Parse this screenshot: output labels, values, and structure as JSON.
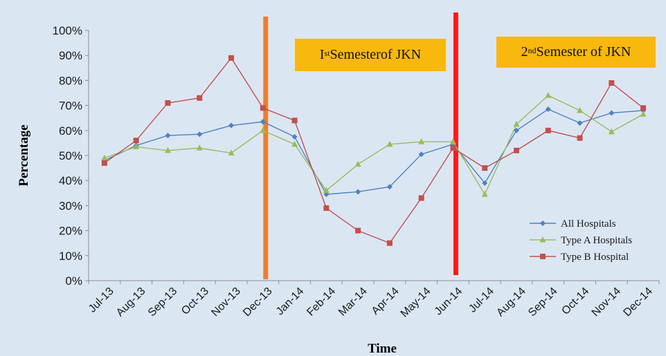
{
  "chart_data": {
    "type": "line",
    "title": "",
    "xlabel": "Time",
    "ylabel": "Percentage",
    "ylim": [
      0,
      100
    ],
    "y_ticks": [
      "0%",
      "10%",
      "20%",
      "30%",
      "40%",
      "50%",
      "60%",
      "70%",
      "80%",
      "90%",
      "100%"
    ],
    "categories": [
      "Jul-13",
      "Aug-13",
      "Sep-13",
      "Oct-13",
      "Nov-13",
      "Dec-13",
      "Jan-14",
      "Feb-14",
      "Mar-14",
      "Apr-14",
      "May-14",
      "Jun-14",
      "Jul-14",
      "Aug-14",
      "Sep-14",
      "Oct-14",
      "Nov-14",
      "Dec-14"
    ],
    "series": [
      {
        "name": "All Hospitals",
        "color": "#4f81bd",
        "marker": "diamond",
        "values": [
          48,
          54,
          58,
          58.5,
          62,
          63.5,
          57.5,
          34.5,
          35.5,
          37.5,
          50.5,
          54.5,
          39,
          60,
          68.5,
          63,
          67,
          68
        ]
      },
      {
        "name": "Type A Hospitals",
        "color": "#9bbb59",
        "marker": "triangle",
        "values": [
          49,
          53.5,
          52,
          53,
          51,
          60,
          54.5,
          36,
          46.5,
          54.5,
          55.5,
          55.5,
          34.5,
          62.5,
          74,
          68,
          59.5,
          66.5
        ]
      },
      {
        "name": "Type B Hospital",
        "color": "#c0504d",
        "marker": "square",
        "values": [
          47,
          56,
          71,
          73,
          89,
          69,
          64,
          29,
          20,
          15,
          33,
          53,
          45,
          52,
          60,
          57,
          79,
          69
        ]
      }
    ],
    "legend_position": "bottom-right",
    "grid": false,
    "dividers": [
      {
        "after_category": "Dec-13",
        "color": "#ed7d31"
      },
      {
        "after_category": "Jun-14",
        "color": "#ff1a1a"
      }
    ],
    "annotations": {
      "semester1": {
        "sup_prefix": "I",
        "sup": "st",
        "text": "Semesterof JKN"
      },
      "semester2": {
        "sup_prefix": "2",
        "sup": "nd",
        "text": " Semester of  JKN"
      }
    }
  }
}
